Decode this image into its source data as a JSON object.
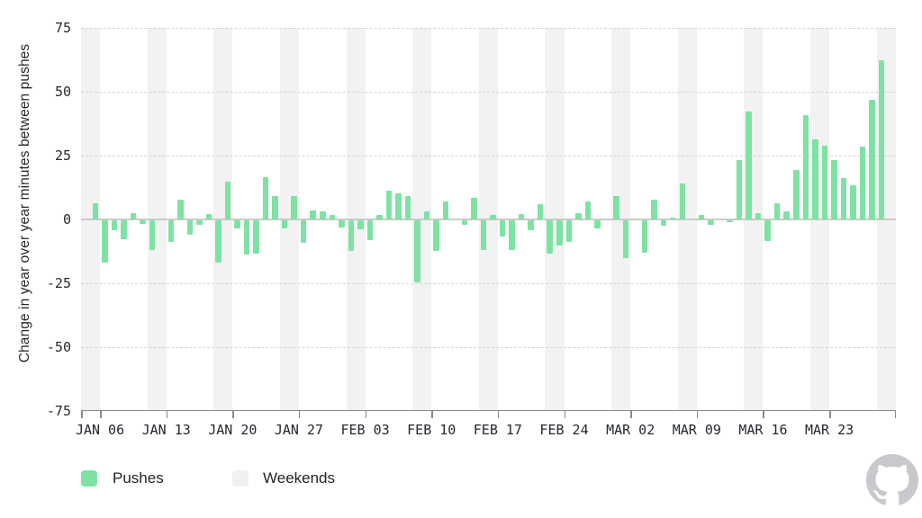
{
  "chart_data": {
    "type": "bar",
    "title": "",
    "ylabel": "Change in year over year minutes between pushes",
    "ylim": [
      -75,
      75
    ],
    "ytick_labels": [
      "75",
      "50",
      "25",
      "0",
      "-25",
      "-50",
      "-75"
    ],
    "ytick_values": [
      75,
      50,
      25,
      0,
      -25,
      -50,
      -75
    ],
    "grid": "dashed horizontal lines at ±25, ±50, 75; solid line at 0 and -75",
    "legend_position": "bottom-left",
    "x_unit": "day",
    "xtick_labels": [
      "JAN 06",
      "JAN 13",
      "JAN 20",
      "JAN 27",
      "FEB 03",
      "FEB 10",
      "FEB 17",
      "FEB 24",
      "MAR 02",
      "MAR 09",
      "MAR 16",
      "MAR 23"
    ],
    "xtick_day_index": [
      2,
      9,
      16,
      23,
      30,
      37,
      44,
      51,
      58,
      65,
      72,
      79
    ],
    "weekend_saturday_day_index": [
      0,
      7,
      14,
      21,
      28,
      35,
      42,
      49,
      56,
      63,
      70,
      77,
      84
    ],
    "series": [
      {
        "name": "Pushes",
        "values": [
          0,
          6.3,
          -16.5,
          -4,
          -7.4,
          2.6,
          -1.4,
          -11.6,
          0,
          -8.4,
          7.9,
          -5.5,
          -1.7,
          2,
          -16.6,
          14.8,
          -3,
          -13.5,
          -13,
          16.5,
          9.1,
          -3.2,
          9.1,
          -8.7,
          3.5,
          3.2,
          1.9,
          -2.7,
          -12.1,
          -3.6,
          -7.6,
          1.7,
          11.4,
          10.2,
          9.1,
          -24.3,
          3.2,
          -12,
          7,
          0,
          -1.8,
          8.3,
          -11.7,
          1.7,
          -6.3,
          -11.5,
          2,
          -4,
          5.9,
          -13.2,
          -9.9,
          -8.4,
          2.5,
          7.1,
          -3,
          0,
          9.1,
          -14.9,
          0,
          -12.6,
          7.9,
          -2,
          0.8,
          14.2,
          0,
          1.9,
          -1.7,
          0,
          -0.6,
          23.2,
          42.1,
          2.4,
          -8.1,
          6.5,
          3,
          19.3,
          40.9,
          31.4,
          28.7,
          23.2,
          16.1,
          13.5,
          28.6,
          46.7,
          62.4,
          0
        ]
      }
    ],
    "legend": [
      {
        "label": "Pushes",
        "color": "#7de2a3"
      },
      {
        "label": "Weekends",
        "color": "#f1f1f1"
      }
    ]
  },
  "colors": {
    "background": "#ffffff",
    "bar_green": "#7de2a3",
    "weekend_band": "#f2f2f2",
    "grid_dashed": "#d4d4d4",
    "zero_line": "#cacaca",
    "axis_line": "#8b8b8b",
    "tick_text": "#24292f",
    "legend_text": "#212529",
    "logo_gray": "#c7c9cc"
  },
  "branding": {
    "logo": "github-octocat-mark"
  }
}
